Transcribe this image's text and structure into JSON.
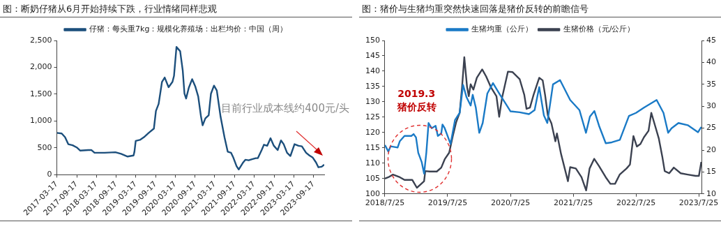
{
  "chart_data": [
    {
      "type": "line",
      "title": "图：断奶仔猪从6月开始持续下跌，行业情绪同样悲观",
      "x": [
        "2017-03-17",
        "2017-05-01",
        "2017-06-01",
        "2017-07-01",
        "2017-08-10",
        "2017-09-17",
        "2017-10-20",
        "2018-01-01",
        "2018-02-01",
        "2018-03-01",
        "2018-06-01",
        "2018-09-10",
        "2018-11-01",
        "2019-01-01",
        "2019-02-25",
        "2019-03-05",
        "2019-03-17",
        "2019-04-25",
        "2019-06-01",
        "2019-07-15",
        "2019-09-01",
        "2019-09-20",
        "2019-10-15",
        "2019-11-15",
        "2019-12-10",
        "2020-01-15",
        "2020-02-20",
        "2020-03-05",
        "2020-03-28",
        "2020-05-01",
        "2020-05-25",
        "2020-06-10",
        "2020-06-25",
        "2020-07-20",
        "2020-08-20",
        "2020-09-17",
        "2020-10-15",
        "2020-11-10",
        "2020-11-25",
        "2020-12-20",
        "2021-01-20",
        "2021-02-10",
        "2021-03-10",
        "2021-04-05",
        "2021-05-10",
        "2021-06-15",
        "2021-07-15",
        "2021-08-15",
        "2021-09-05",
        "2021-10-05",
        "2021-10-25",
        "2021-12-01",
        "2021-12-25",
        "2022-01-25",
        "2022-02-25",
        "2022-04-01",
        "2022-04-20",
        "2022-05-25",
        "2022-06-15",
        "2022-07-15",
        "2022-08-15",
        "2022-09-15",
        "2022-10-20",
        "2022-11-20",
        "2022-12-15",
        "2023-01-15",
        "2023-02-15",
        "2023-03-25",
        "2023-05-01",
        "2023-06-01",
        "2023-07-10",
        "2023-08-10",
        "2023-09-10",
        "2023-10-10",
        "2023-11-01",
        "2023-12-01",
        "2023-12-25"
      ],
      "series": [
        {
          "name": "仔猪：每头重7kg：规模化养殖场：出栏均价：中国（周）",
          "color": "#1c4f7c",
          "values": [
            780,
            770,
            700,
            570,
            550,
            510,
            450,
            460,
            460,
            410,
            410,
            420,
            390,
            340,
            360,
            430,
            630,
            650,
            700,
            780,
            860,
            1190,
            1320,
            1730,
            1810,
            1630,
            1730,
            1840,
            2380,
            2300,
            1940,
            1510,
            1420,
            1620,
            1780,
            1650,
            1460,
            1080,
            920,
            1050,
            1110,
            1510,
            1660,
            1570,
            1080,
            700,
            430,
            410,
            320,
            160,
            100,
            220,
            280,
            270,
            290,
            310,
            310,
            460,
            560,
            540,
            680,
            540,
            460,
            640,
            570,
            410,
            350,
            570,
            540,
            530,
            410,
            360,
            320,
            230,
            140,
            150,
            190
          ]
        }
      ],
      "xlim": [
        "2017-03-17",
        "2023-12-25"
      ],
      "xticks": [
        "2017-03-17",
        "2017-09-17",
        "2018-03-17",
        "2018-09-17",
        "2019-03-17",
        "2019-09-17",
        "2020-03-17",
        "2020-09-17",
        "2021-03-17",
        "2021-09-17",
        "2022-03-17",
        "2022-09-17",
        "2023-03-17",
        "2023-09-17"
      ],
      "ylim": [
        0,
        2500
      ],
      "yticks": [
        0,
        500,
        {
          "value": 1000,
          "label": "1,000"
        },
        {
          "value": 1500,
          "label": "1,500"
        },
        {
          "value": 2000,
          "label": "2,000"
        },
        {
          "value": 2500,
          "label": "2,500"
        }
      ],
      "legend": "top",
      "grid": false,
      "annotations": [
        "目前行业成本线约400元/头"
      ]
    },
    {
      "type": "line",
      "title": "图：猪价与生猪均重突然快速回落是猪价反转的前瞻信号",
      "series": [
        {
          "name": "生猪均重（公斤）",
          "color": "#1a7ac6",
          "x": [
            "2018-07-25",
            "2018-08-14",
            "2018-08-27",
            "2018-10-07",
            "2018-10-20",
            "2018-11-16",
            "2018-12-26",
            "2019-01-08",
            "2019-01-22",
            "2019-02-04",
            "2019-02-24",
            "2019-03-10",
            "2019-03-23",
            "2019-04-05",
            "2019-04-23",
            "2019-05-16",
            "2019-05-29",
            "2019-06-18",
            "2019-06-25",
            "2019-07-08",
            "2019-08-11",
            "2019-09-06",
            "2019-10-03",
            "2019-10-23",
            "2019-11-12",
            "2019-12-06",
            "2019-12-18",
            "2020-01-05",
            "2020-01-25",
            "2020-02-14",
            "2020-03-12",
            "2020-04-14",
            "2020-05-25",
            "2020-06-27",
            "2020-07-25",
            "2020-09-16",
            "2020-11-09",
            "2020-12-12",
            "2021-01-08",
            "2021-02-04",
            "2021-02-24",
            "2021-03-29",
            "2021-05-09",
            "2021-07-07",
            "2021-08-30",
            "2021-10-07",
            "2021-10-30",
            "2021-11-25",
            "2021-12-22",
            "2022-01-30",
            "2022-03-06",
            "2022-04-22",
            "2022-06-14",
            "2022-07-25",
            "2022-09-09",
            "2022-11-22",
            "2023-01-01",
            "2023-01-28",
            "2023-02-17",
            "2023-03-29",
            "2023-05-22",
            "2023-07-21",
            "2023-08-09"
          ],
          "values": [
            115.9,
            113.8,
            115.5,
            115.1,
            117.2,
            118.9,
            118.9,
            119.5,
            118.4,
            113.4,
            110.4,
            106.6,
            113.4,
            123.1,
            121.4,
            122.2,
            118.9,
            119.7,
            122.6,
            121.4,
            116.3,
            124.1,
            126.4,
            135.5,
            131.5,
            128.8,
            132.3,
            128.1,
            119.9,
            123.1,
            132.7,
            136.1,
            132.3,
            129.4,
            126.9,
            126.6,
            126.0,
            127.3,
            134.8,
            125.6,
            123.1,
            135.7,
            137.1,
            130.6,
            127.3,
            119.9,
            125.2,
            127.0,
            122.2,
            116.5,
            116.8,
            117.6,
            125.4,
            126.4,
            128.1,
            130.6,
            126.4,
            119.9,
            121.4,
            123.1,
            122.4,
            120.1,
            121.8
          ]
        },
        {
          "name": "生猪价格（元/公斤）",
          "color": "#3b4150",
          "axis": "y2",
          "x": [
            "2018-07-25",
            "2018-08-14",
            "2018-09-10",
            "2018-10-20",
            "2018-11-16",
            "2018-12-31",
            "2019-01-27",
            "2019-02-16",
            "2019-03-10",
            "2019-03-17",
            "2019-04-12",
            "2019-05-23",
            "2019-06-18",
            "2019-07-08",
            "2019-08-03",
            "2019-08-24",
            "2019-09-13",
            "2019-10-03",
            "2019-10-17",
            "2019-10-30",
            "2019-11-15",
            "2019-11-25",
            "2019-12-06",
            "2019-12-22",
            "2020-01-11",
            "2020-02-11",
            "2020-03-05",
            "2020-04-01",
            "2020-05-04",
            "2020-05-20",
            "2020-06-06",
            "2020-07-10",
            "2020-08-05",
            "2020-09-16",
            "2020-10-13",
            "2020-10-26",
            "2020-11-15",
            "2020-12-06",
            "2021-01-08",
            "2021-01-28",
            "2021-02-11",
            "2021-02-27",
            "2021-03-20",
            "2021-04-12",
            "2021-04-21",
            "2021-05-15",
            "2021-06-24",
            "2021-07-07",
            "2021-08-09",
            "2021-09-11",
            "2021-10-08",
            "2021-10-28",
            "2021-11-24",
            "2021-12-21",
            "2022-01-30",
            "2022-02-26",
            "2022-03-25",
            "2022-04-21",
            "2022-05-31",
            "2022-06-20",
            "2022-07-10",
            "2022-07-30",
            "2022-08-20",
            "2022-09-09",
            "2022-10-06",
            "2022-10-22",
            "2022-11-15",
            "2022-12-05",
            "2022-12-25",
            "2023-01-08",
            "2023-02-03",
            "2023-03-02",
            "2023-04-11",
            "2023-05-22",
            "2023-07-07",
            "2023-07-26",
            "2023-08-09"
          ],
          "values": [
            13.5,
            13.8,
            14.4,
            13.8,
            13.2,
            13.2,
            11.4,
            12.1,
            12.9,
            15.2,
            15.1,
            15.1,
            16.0,
            17.9,
            19.4,
            23.2,
            26.4,
            28.5,
            34.4,
            41.2,
            34.4,
            32.3,
            35.0,
            33.8,
            36.5,
            38.4,
            36.8,
            34.4,
            32.3,
            27.6,
            32.0,
            37.9,
            37.8,
            36.2,
            32.6,
            29.4,
            29.7,
            32.6,
            36.5,
            35.9,
            32.6,
            27.9,
            26.1,
            22.0,
            23.8,
            19.1,
            12.9,
            16.1,
            15.8,
            13.8,
            10.8,
            15.8,
            18.0,
            16.4,
            13.8,
            12.3,
            12.3,
            14.4,
            15.8,
            16.7,
            23.2,
            20.8,
            21.4,
            22.9,
            24.4,
            28.5,
            25.3,
            22.6,
            18.5,
            15.2,
            14.7,
            16.0,
            14.7,
            14.4,
            14.1,
            14.1,
            17.3
          ]
        }
      ],
      "xlim": [
        "2018-07-25",
        "2023-08-10"
      ],
      "xticks": [
        {
          "value": "2018-07-25",
          "label": "2018/7/25"
        },
        {
          "value": "2019-07-25",
          "label": "2019/7/25"
        },
        {
          "value": "2020-07-25",
          "label": "2020/7/25"
        },
        {
          "value": "2021-07-25",
          "label": "2021/7/25"
        },
        {
          "value": "2022-07-25",
          "label": "2022/7/25"
        },
        {
          "value": "2023-07-25",
          "label": "2023/7/25"
        }
      ],
      "ylim": [
        100,
        150
      ],
      "yticks": [
        100,
        105,
        110,
        115,
        120,
        125,
        130,
        135,
        140,
        145,
        150
      ],
      "y2lim": [
        10,
        45
      ],
      "y2ticks": [
        10,
        15,
        20,
        25,
        30,
        35,
        40,
        45
      ],
      "legend": "top",
      "grid": false,
      "annotations": [
        "2019.3\n猪价反转"
      ]
    }
  ]
}
